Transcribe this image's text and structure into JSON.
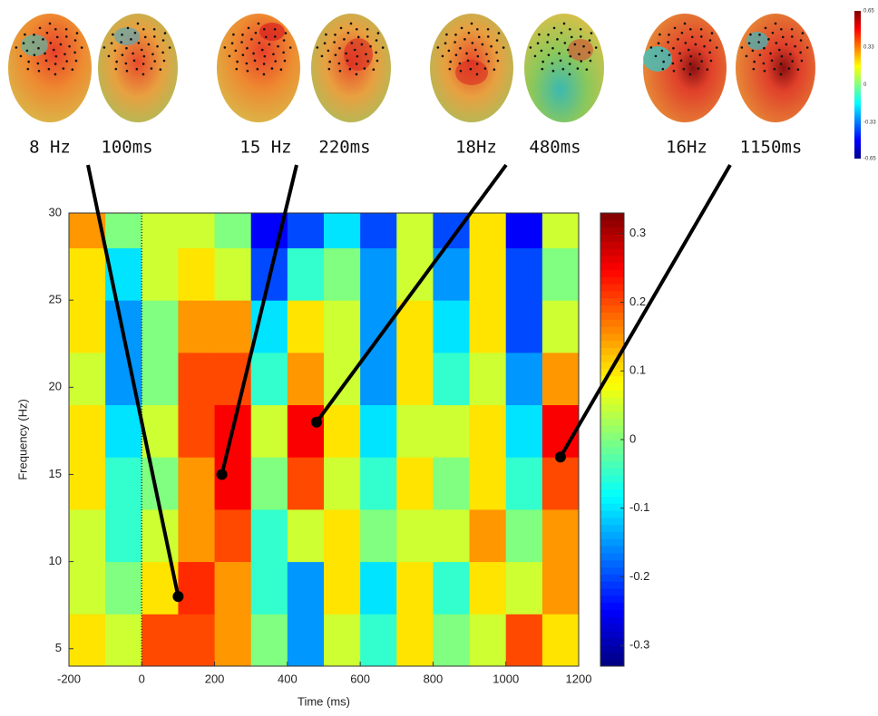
{
  "chart_data": {
    "type": "heatmap",
    "x_label": "Time (ms)",
    "y_label": "Frequency (Hz)",
    "xlim": [
      -200,
      1200
    ],
    "ylim": [
      4,
      30
    ],
    "xticks": [
      -200,
      0,
      200,
      400,
      600,
      800,
      1000,
      1200
    ],
    "yticks": [
      5,
      10,
      15,
      20,
      25,
      30
    ],
    "x_bins": [
      -200,
      -100,
      0,
      100,
      200,
      300,
      400,
      500,
      600,
      700,
      800,
      900,
      1000,
      1100,
      1200
    ],
    "y_bins": [
      4,
      7,
      10,
      13,
      16,
      19,
      22,
      25,
      28,
      30
    ],
    "z": [
      [
        0.1,
        0.05,
        0.2,
        0.2,
        0.15,
        0.0,
        -0.15,
        0.05,
        -0.05,
        0.1,
        0.0,
        0.05,
        0.2,
        0.1
      ],
      [
        0.05,
        0.0,
        0.1,
        0.22,
        0.15,
        -0.05,
        -0.15,
        0.1,
        -0.1,
        0.1,
        -0.05,
        0.1,
        0.05,
        0.15
      ],
      [
        0.05,
        -0.05,
        0.05,
        0.15,
        0.2,
        -0.05,
        0.05,
        0.1,
        0.0,
        0.05,
        0.05,
        0.15,
        0.0,
        0.15
      ],
      [
        0.1,
        -0.05,
        0.0,
        0.15,
        0.25,
        0.0,
        0.2,
        0.05,
        -0.05,
        0.1,
        0.0,
        0.1,
        -0.05,
        0.2
      ],
      [
        0.1,
        -0.1,
        0.05,
        0.2,
        0.25,
        0.05,
        0.25,
        0.1,
        -0.1,
        0.05,
        0.05,
        0.1,
        -0.1,
        0.25
      ],
      [
        0.05,
        -0.15,
        0.0,
        0.2,
        0.2,
        -0.05,
        0.15,
        0.05,
        -0.15,
        0.1,
        -0.05,
        0.05,
        -0.15,
        0.15
      ],
      [
        0.1,
        -0.15,
        0.0,
        0.15,
        0.15,
        -0.1,
        0.1,
        0.05,
        -0.15,
        0.1,
        -0.1,
        0.1,
        -0.2,
        0.05
      ],
      [
        0.1,
        -0.1,
        0.05,
        0.1,
        0.05,
        -0.2,
        -0.05,
        0.0,
        -0.15,
        0.05,
        -0.15,
        0.1,
        -0.2,
        0.0
      ],
      [
        0.15,
        0.0,
        0.05,
        0.05,
        0.0,
        -0.25,
        -0.2,
        -0.1,
        -0.2,
        0.05,
        -0.2,
        0.1,
        -0.25,
        0.05
      ]
    ],
    "clim": [
      -0.33,
      0.33
    ],
    "cticks": [
      -0.3,
      -0.2,
      -0.1,
      0,
      0.1,
      0.2,
      0.3
    ],
    "vline": 0,
    "annotations": [
      {
        "x": 100,
        "y": 8,
        "freq_label": "8 Hz",
        "time_label": "100ms"
      },
      {
        "x": 220,
        "y": 15,
        "freq_label": "15 Hz",
        "time_label": "220ms"
      },
      {
        "x": 480,
        "y": 18,
        "freq_label": "18Hz",
        "time_label": "480ms"
      },
      {
        "x": 1150,
        "y": 16,
        "freq_label": "16Hz",
        "time_label": "1150ms"
      }
    ],
    "topo_colorbar": {
      "ylim": [
        -0.65,
        0.65
      ],
      "ticks": [
        -0.65,
        -0.33,
        0,
        0.33,
        0.65
      ]
    }
  }
}
